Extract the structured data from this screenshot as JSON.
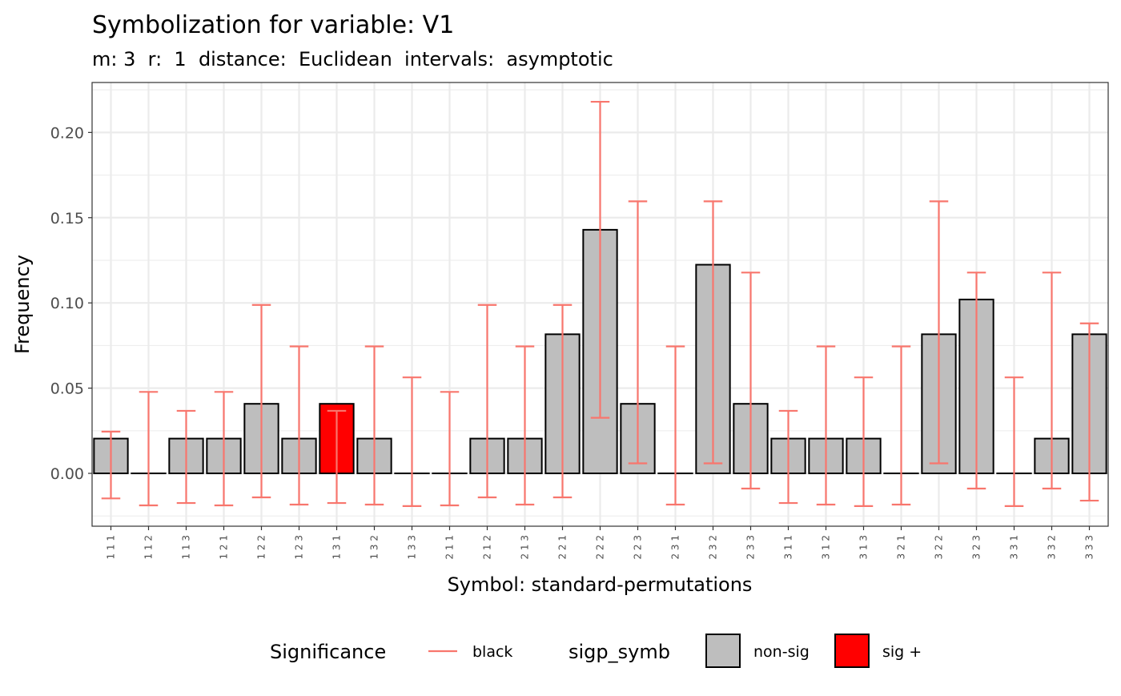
{
  "chart_data": {
    "type": "bar",
    "title": "Symbolization for variable: V1",
    "subtitle": "m: 3  r:  1  distance:  Euclidean  intervals:  asymptotic",
    "xlabel": "Symbol: standard-permutations",
    "ylabel": "Frequency",
    "ylim": [
      -0.031,
      0.2293
    ],
    "yticks": [
      "0.00",
      "0.05",
      "0.10",
      "0.15",
      "0.20"
    ],
    "yticks_values": [
      0,
      0.05,
      0.1,
      0.15,
      0.2
    ],
    "grid": true,
    "legend_position": "bottom",
    "categories": [
      "1 1 1",
      "1 1 2",
      "1 1 3",
      "1 2 1",
      "1 2 2",
      "1 2 3",
      "1 3 1",
      "1 3 2",
      "1 3 3",
      "2 1 1",
      "2 1 2",
      "2 1 3",
      "2 2 1",
      "2 2 2",
      "2 2 3",
      "2 3 1",
      "2 3 2",
      "2 3 3",
      "3 1 1",
      "3 1 2",
      "3 1 3",
      "3 2 1",
      "3 2 2",
      "3 2 3",
      "3 3 1",
      "3 3 2",
      "3 3 3"
    ],
    "values": [
      0.0204,
      0,
      0.0204,
      0.0204,
      0.0408,
      0.0204,
      0.0408,
      0.0204,
      0,
      0,
      0.0204,
      0.0204,
      0.0816,
      0.1429,
      0.0408,
      0,
      0.1224,
      0.0408,
      0.0204,
      0.0204,
      0.0204,
      0,
      0.0816,
      0.102,
      0,
      0.0204,
      0.0816
    ],
    "error_low": [
      -0.0147,
      -0.0188,
      -0.0174,
      -0.0188,
      -0.0141,
      -0.0183,
      -0.0174,
      -0.0183,
      -0.0192,
      -0.0188,
      -0.0141,
      -0.0183,
      -0.0141,
      0.0326,
      0.0059,
      -0.0183,
      0.0059,
      -0.0089,
      -0.0174,
      -0.0183,
      -0.0192,
      -0.0183,
      0.0059,
      -0.0089,
      -0.0192,
      -0.0089,
      -0.016
    ],
    "error_high": [
      0.0245,
      0.0478,
      0.0367,
      0.0478,
      0.0988,
      0.0745,
      0.0367,
      0.0745,
      0.0563,
      0.0478,
      0.0988,
      0.0745,
      0.0988,
      0.218,
      0.1596,
      0.0745,
      0.1596,
      0.1178,
      0.0367,
      0.0745,
      0.0563,
      0.0745,
      0.1596,
      0.1178,
      0.0563,
      0.1178,
      0.088
    ],
    "significance": [
      "non-sig",
      "non-sig",
      "non-sig",
      "non-sig",
      "non-sig",
      "non-sig",
      "sig +",
      "non-sig",
      "non-sig",
      "non-sig",
      "non-sig",
      "non-sig",
      "non-sig",
      "non-sig",
      "non-sig",
      "non-sig",
      "non-sig",
      "non-sig",
      "non-sig",
      "non-sig",
      "non-sig",
      "non-sig",
      "non-sig",
      "non-sig",
      "non-sig",
      "non-sig",
      "non-sig"
    ],
    "colors": {
      "non-sig": "#bebebe",
      "sig +": "#ff0000",
      "errorbar": "#f8766d",
      "bar_outline": "#000000",
      "grid": "#ebebeb"
    },
    "legend": {
      "significance_title": "Significance",
      "significance_item": "black",
      "fill_title": "sigp_symb",
      "fill_items": [
        "non-sig",
        "sig +"
      ]
    }
  }
}
